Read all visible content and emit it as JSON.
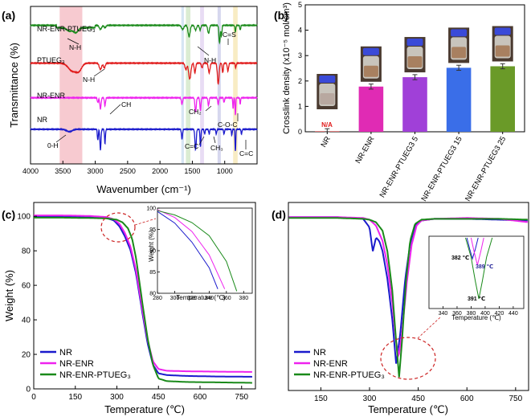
{
  "panels": {
    "a": {
      "label": "(a)",
      "xlabel": "Wavenumber (cm⁻¹)",
      "ylabel": "Transmittance (%)",
      "xticks": [
        "4000",
        "3500",
        "3000",
        "2500",
        "2000",
        "1500",
        "1000"
      ],
      "xrange": [
        4000,
        500
      ],
      "series": [
        {
          "name": "NR-ENR-PTUEG₃",
          "color": "#1a8a1a",
          "base": 0.88
        },
        {
          "name": "PTUEG₃",
          "color": "#e01a1a",
          "base": 0.64
        },
        {
          "name": "NR-ENR",
          "color": "#ee22ee",
          "base": 0.42
        },
        {
          "name": "NR",
          "color": "#1a1acc",
          "base": 0.22
        }
      ],
      "bands": [
        {
          "from": 3550,
          "to": 3200,
          "color": "#f4b8c0"
        },
        {
          "from": 1670,
          "to": 1630,
          "color": "#c8dcf0"
        },
        {
          "from": 1600,
          "to": 1530,
          "color": "#cfe6c4"
        },
        {
          "from": 1380,
          "to": 1320,
          "color": "#e0d0f0"
        },
        {
          "from": 1110,
          "to": 1060,
          "color": "#c8cae8"
        },
        {
          "from": 870,
          "to": 800,
          "color": "#f6e6b0"
        }
      ],
      "annotations": [
        "N-H",
        "N-H",
        "C=S",
        "N-H",
        "CH",
        "CH₂",
        "C-O-C",
        "0-H",
        "C=C",
        "CH₃",
        "C=C"
      ]
    },
    "b": {
      "label": "(b)",
      "ylabel": "Crosslink density (x10⁻⁵ mol/cm³)",
      "na_label": "N/A",
      "chart_data": {
        "type": "bar",
        "categories": [
          "NR",
          "NR-ENR",
          "NR-ENR-PTUEG3 5",
          "NR-ENR-PTUEG3 15",
          "NR-ENR-PTUEG3 25"
        ],
        "values": [
          0.02,
          1.78,
          2.15,
          2.52,
          2.58
        ],
        "errors": [
          0.1,
          0.1,
          0.1,
          0.1,
          0.1
        ],
        "colors": [
          "#d63a3a",
          "#e02bb4",
          "#a040d8",
          "#3a6ee8",
          "#6a9a28"
        ],
        "ylim": [
          0,
          5
        ],
        "yticks": [
          "0",
          "1",
          "2",
          "3",
          "4",
          "5"
        ]
      }
    },
    "c": {
      "label": "(c)",
      "xlabel": "Temperature (℃)",
      "ylabel": "Weight (%)",
      "xticks": [
        "0",
        "150",
        "300",
        "450",
        "600",
        "750"
      ],
      "yticks": [
        "0",
        "20",
        "40",
        "60",
        "80",
        "100"
      ],
      "inset": {
        "xlabel": "Temperature (℃)",
        "ylabel": "Weight (%)",
        "xticks": [
          "280",
          "300",
          "320",
          "340",
          "360",
          "380"
        ],
        "yticks": [
          "80",
          "85",
          "90",
          "95",
          "100"
        ]
      },
      "chart_data": {
        "type": "line",
        "xlim": [
          0,
          800
        ],
        "ylim": [
          0,
          108
        ],
        "series": [
          {
            "name": "NR",
            "color": "#1a1acc",
            "x": [
              0,
              100,
              200,
              260,
              290,
              310,
              330,
              350,
              370,
              390,
              410,
              430,
              450,
              480,
              550,
              650,
              790
            ],
            "y": [
              100,
              100,
              99.8,
              99.2,
              97.5,
              94,
              88,
              80,
              66,
              46,
              27,
              14,
              9,
              8,
              7.5,
              7.2,
              7
            ]
          },
          {
            "name": "NR-ENR",
            "color": "#ee22ee",
            "x": [
              0,
              100,
              200,
              260,
              290,
              310,
              330,
              350,
              370,
              390,
              410,
              430,
              450,
              480,
              550,
              650,
              790
            ],
            "y": [
              100.5,
              100.5,
              100.2,
              99.6,
              98.2,
              95.5,
              90,
              82,
              68,
              48,
              29,
              16,
              11.5,
              10.5,
              10.2,
              10,
              9.8
            ]
          },
          {
            "name": "NR-ENR-PTUEG₃",
            "color": "#1a8a1a",
            "x": [
              0,
              100,
              200,
              260,
              300,
              320,
              340,
              355,
              370,
              390,
              410,
              430,
              450,
              480,
              550,
              650,
              790
            ],
            "y": [
              99.2,
              99.2,
              99,
              98.8,
              98,
              96.5,
              93,
              87,
              75,
              52,
              30,
              14,
              6,
              4.5,
              4,
              3.8,
              3.5
            ]
          }
        ]
      }
    },
    "d": {
      "label": "(d)",
      "xlabel": "Temperature (℃)",
      "xticks": [
        "150",
        "300",
        "450",
        "600",
        "750"
      ],
      "inset": {
        "xlabel": "Temperature (℃)",
        "xticks": [
          "340",
          "360",
          "380",
          "400",
          "420",
          "440"
        ],
        "peaks": [
          "382 ℃",
          "389 ℃",
          "391 ℃"
        ]
      },
      "chart_data": {
        "type": "line",
        "xlim": [
          50,
          790
        ],
        "series": [
          {
            "name": "NR",
            "color": "#1a1acc",
            "x": [
              50,
              200,
              280,
              300,
              310,
              320,
              330,
              340,
              355,
              370,
              382,
              395,
              410,
              425,
              440,
              460,
              500,
              600,
              700,
              790
            ],
            "y": [
              0.98,
              0.98,
              0.97,
              0.92,
              0.78,
              0.86,
              0.84,
              0.78,
              0.62,
              0.38,
              0.12,
              0.3,
              0.62,
              0.82,
              0.93,
              0.96,
              0.97,
              0.97,
              0.965,
              0.96
            ]
          },
          {
            "name": "NR-ENR",
            "color": "#ee22ee",
            "x": [
              50,
              200,
              280,
              300,
              320,
              340,
              355,
              370,
              380,
              389,
              400,
              415,
              430,
              445,
              460,
              500,
              600,
              700,
              790
            ],
            "y": [
              0.98,
              0.98,
              0.975,
              0.965,
              0.93,
              0.84,
              0.7,
              0.48,
              0.28,
              0.15,
              0.3,
              0.6,
              0.82,
              0.93,
              0.96,
              0.97,
              0.975,
              0.97,
              0.95
            ]
          },
          {
            "name": "NR-ENR-PTUEG₃",
            "color": "#1a8a1a",
            "x": [
              50,
              200,
              280,
              300,
              320,
              340,
              355,
              370,
              380,
              391,
              400,
              412,
              425,
              440,
              460,
              500,
              600,
              700,
              790
            ],
            "y": [
              0.975,
              0.975,
              0.97,
              0.965,
              0.95,
              0.9,
              0.78,
              0.55,
              0.3,
              0.04,
              0.25,
              0.6,
              0.84,
              0.94,
              0.965,
              0.97,
              0.97,
              0.97,
              0.965
            ]
          }
        ]
      }
    }
  }
}
